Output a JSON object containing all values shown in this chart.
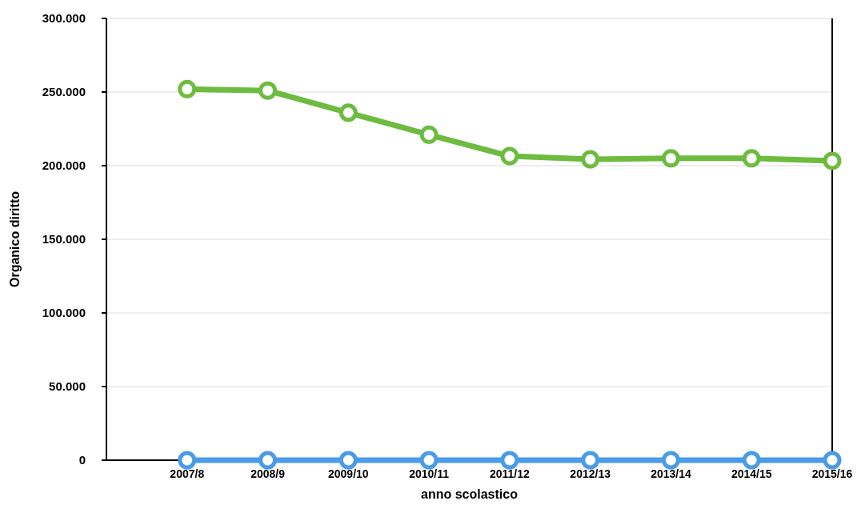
{
  "chart_data": {
    "type": "line",
    "xlabel": "anno scolastico",
    "ylabel": "Organico diritto",
    "categories": [
      "2007/8",
      "2008/9",
      "2009/10",
      "2010/11",
      "2011/12",
      "2012/13",
      "2013/14",
      "2014/15",
      "2015/16"
    ],
    "series": [
      {
        "color": "#6dbb3f",
        "values": [
          252000,
          251000,
          236000,
          221000,
          206500,
          204300,
          205000,
          205000,
          203300
        ]
      },
      {
        "color": "#4a9be8",
        "values": [
          0,
          0,
          0,
          0,
          0,
          0,
          0,
          0,
          0
        ]
      }
    ],
    "ylim": [
      0,
      300000
    ],
    "yticks": [
      {
        "value": 0,
        "label": "0"
      },
      {
        "value": 50000,
        "label": "50.000"
      },
      {
        "value": 100000,
        "label": "100.000"
      },
      {
        "value": 150000,
        "label": "150.000"
      },
      {
        "value": 200000,
        "label": "200.000"
      },
      {
        "value": 250000,
        "label": "250.000"
      },
      {
        "value": 300000,
        "label": "300.000"
      }
    ],
    "grid": "y",
    "marker": "circle",
    "line_style": "solid"
  }
}
